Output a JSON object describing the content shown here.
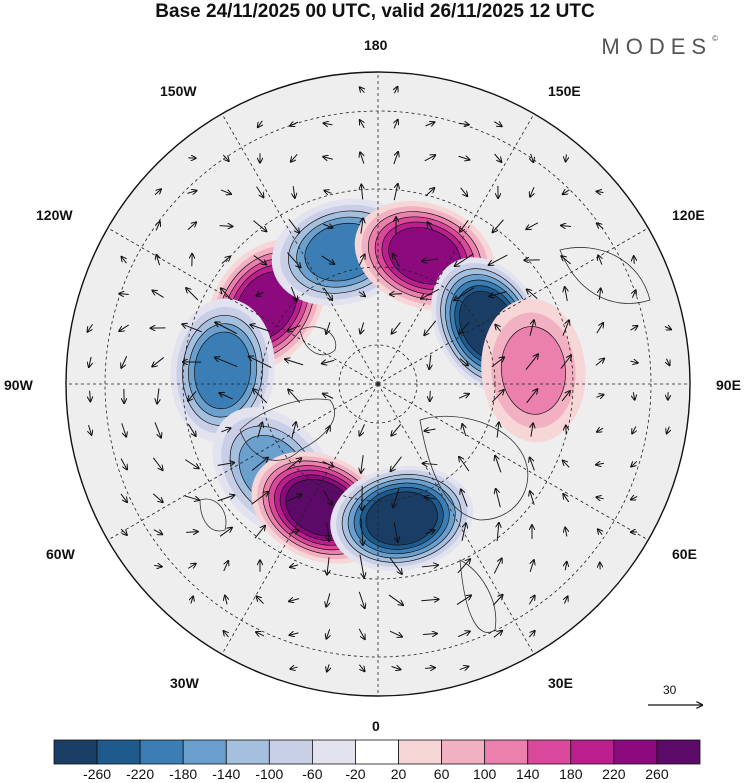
{
  "title": "Base 24/11/2025 00 UTC, valid 26/11/2025 12 UTC",
  "brand": "MODES",
  "brand_mark": "©",
  "longitude_labels": {
    "n180": "180",
    "n150e": "150E",
    "n120e": "120E",
    "n90e": "90E",
    "n60e": "60E",
    "n30e": "30E",
    "n0": "0",
    "n30w": "30W",
    "n60w": "60W",
    "n90w": "90W",
    "n120w": "120W",
    "n150w": "150W"
  },
  "reference_vector": {
    "label": "30"
  },
  "colorbar": {
    "labels": [
      "-260",
      "-220",
      "-180",
      "-140",
      "-100",
      "-60",
      "-20",
      "20",
      "60",
      "100",
      "140",
      "180",
      "220",
      "260"
    ],
    "colors": [
      "#1a3d66",
      "#1f5a8c",
      "#3b7eb5",
      "#6b9fcd",
      "#a5bfde",
      "#c9cfe6",
      "#e3e3f0",
      "#ffffff",
      "#f6d6d6",
      "#f2b1c2",
      "#eb80ac",
      "#d9489a",
      "#bb1f8e",
      "#8c0a7e",
      "#5c0a68"
    ]
  },
  "chart_data": {
    "type": "polar-stereographic anomaly map",
    "variable_range": [
      -260,
      260
    ],
    "contour_interval": 40,
    "anomaly_centers": [
      {
        "sign": "positive",
        "lon": -125,
        "lat": 55,
        "peak": 240
      },
      {
        "sign": "negative",
        "lon": -165,
        "lat": 55,
        "peak": -200
      },
      {
        "sign": "positive",
        "lon": 160,
        "lat": 55,
        "peak": 220
      },
      {
        "sign": "negative",
        "lon": 118,
        "lat": 58,
        "peak": -260
      },
      {
        "sign": "negative",
        "lon": -95,
        "lat": 50,
        "peak": -180
      },
      {
        "sign": "positive",
        "lon": 95,
        "lat": 50,
        "peak": 100
      },
      {
        "sign": "negative",
        "lon": -50,
        "lat": 55,
        "peak": -160
      },
      {
        "sign": "positive",
        "lon": -25,
        "lat": 55,
        "peak": 260
      },
      {
        "sign": "negative",
        "lon": 10,
        "lat": 55,
        "peak": -260
      }
    ]
  }
}
